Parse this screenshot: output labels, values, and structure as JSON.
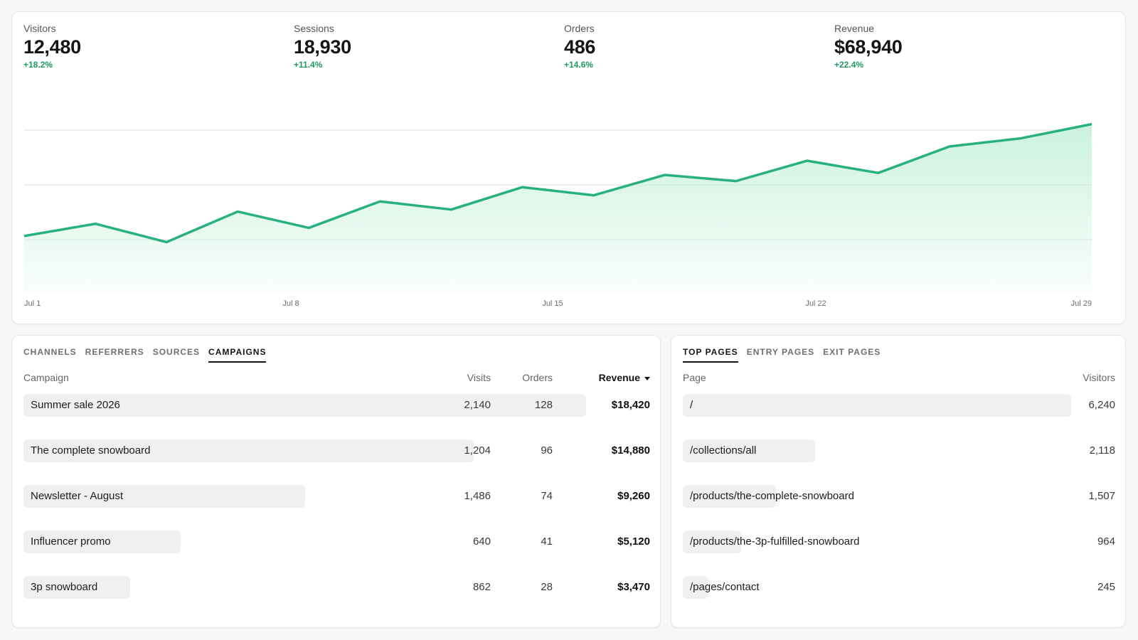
{
  "overview": {
    "metrics": [
      {
        "label": "Visitors",
        "value": "12,480",
        "delta": "+18.2%"
      },
      {
        "label": "Sessions",
        "value": "18,930",
        "delta": "+11.4%"
      },
      {
        "label": "Orders",
        "value": "486",
        "delta": "+14.6%"
      },
      {
        "label": "Revenue",
        "value": "$68,940",
        "delta": "+22.4%"
      }
    ]
  },
  "chart_data": {
    "type": "area",
    "title": "",
    "xlabel": "",
    "ylabel": "",
    "x_tick_labels": [
      "Jul 1",
      "Jul 8",
      "Jul 15",
      "Jul 22",
      "Jul 29"
    ],
    "x_index": [
      0,
      1,
      2,
      3,
      4,
      5,
      6,
      7,
      8,
      9,
      10,
      11,
      12,
      13,
      14,
      15
    ],
    "values": [
      28,
      34,
      25,
      40,
      32,
      45,
      41,
      52,
      48,
      58,
      55,
      65,
      59,
      72,
      76,
      83
    ],
    "ylim": [
      0,
      108
    ],
    "grid": true,
    "line_color": "#28b07f",
    "fill_color": "#c9f2dd"
  },
  "campaigns": {
    "tabs": [
      "CHANNELS",
      "REFERRERS",
      "SOURCES",
      "CAMPAIGNS"
    ],
    "active_tab": 3,
    "headers": {
      "name": "Campaign",
      "visits": "Visits",
      "orders": "Orders",
      "revenue": "Revenue"
    },
    "rows": [
      {
        "name": "Summer sale 2026",
        "visits": "2,140",
        "orders": "128",
        "revenue": "$18,420",
        "share": 1.0
      },
      {
        "name": "The complete snowboard",
        "visits": "1,204",
        "orders": "96",
        "revenue": "$14,880",
        "share": 0.8
      },
      {
        "name": "Newsletter - August",
        "visits": "1,486",
        "orders": "74",
        "revenue": "$9,260",
        "share": 0.5
      },
      {
        "name": "Influencer promo",
        "visits": "640",
        "orders": "41",
        "revenue": "$5,120",
        "share": 0.28
      },
      {
        "name": "3p snowboard",
        "visits": "862",
        "orders": "28",
        "revenue": "$3,470",
        "share": 0.19
      }
    ]
  },
  "pages": {
    "tabs": [
      "TOP PAGES",
      "ENTRY PAGES",
      "EXIT PAGES"
    ],
    "active_tab": 0,
    "headers": {
      "page": "Page",
      "visitors": "Visitors"
    },
    "rows": [
      {
        "page": "/",
        "visitors": "6,240",
        "share": 1.0
      },
      {
        "page": "/collections/all",
        "visitors": "2,118",
        "share": 0.34
      },
      {
        "page": "/products/the-complete-snowboard",
        "visitors": "1,507",
        "share": 0.24
      },
      {
        "page": "/products/the-3p-fulfilled-snowboard",
        "visitors": "964",
        "share": 0.15
      },
      {
        "page": "/pages/contact",
        "visitors": "245",
        "share": 0.065
      }
    ]
  }
}
